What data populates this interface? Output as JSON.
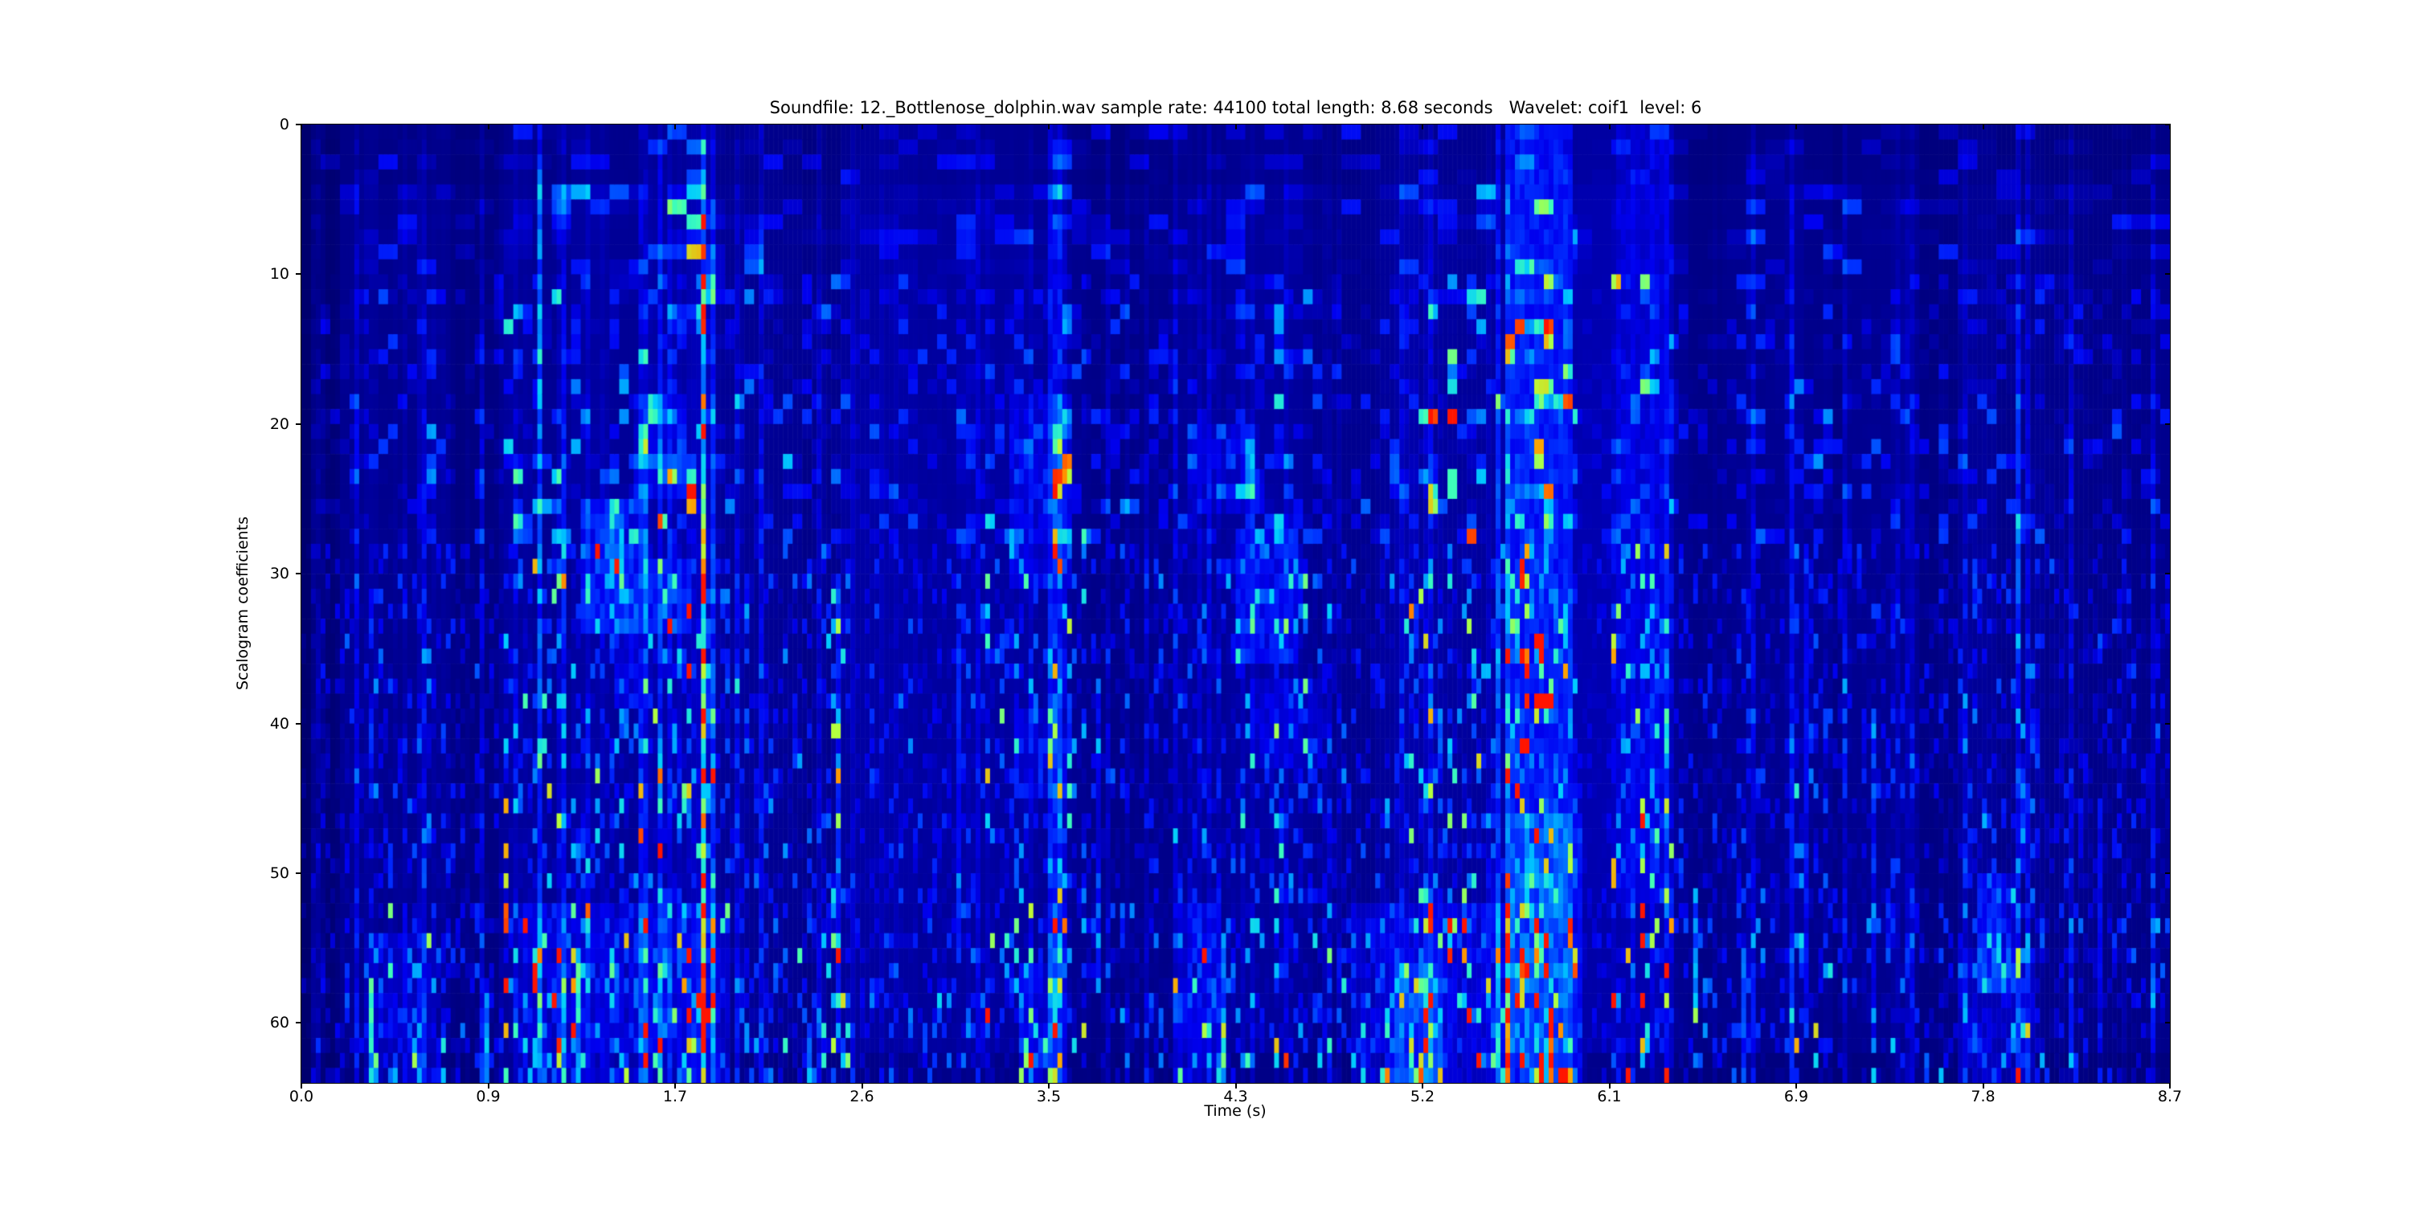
{
  "figure": {
    "background": "#ffffff",
    "text_color": "#000000"
  },
  "chart_data": {
    "type": "heatmap",
    "title": "Soundfile: 12._Bottlenose_dolphin.wav sample rate: 44100 total length: 8.68 seconds   Wavelet: coif1  level: 6",
    "xlabel": "Time (s)",
    "ylabel": "Scalogram coefficients",
    "sound": {
      "file": "12._Bottlenose_dolphin.wav",
      "sample_rate": "44100",
      "total_length_seconds": "8.68",
      "wavelet": "coif1",
      "level": "6"
    },
    "x_ticks": [
      "0.0",
      "0.9",
      "1.7",
      "2.6",
      "3.5",
      "4.3",
      "5.2",
      "6.1",
      "6.9",
      "7.8",
      "8.7"
    ],
    "y_ticks": [
      "0",
      "10",
      "20",
      "30",
      "40",
      "50",
      "60"
    ],
    "y_tick_values": [
      0,
      10,
      20,
      30,
      40,
      50,
      60
    ],
    "x_range": [
      0,
      8.68
    ],
    "y_range": [
      0,
      64
    ],
    "y_axis_inverted": true,
    "grid": false,
    "legend": "none",
    "grid_cols": 388,
    "grid_rows": 64,
    "seed": 1337,
    "base_color": "#000080",
    "colormap": [
      {
        "v": 0.0,
        "rgb": [
          0,
          0,
          110
        ]
      },
      {
        "v": 0.06,
        "rgb": [
          0,
          0,
          128
        ]
      },
      {
        "v": 0.14,
        "rgb": [
          0,
          0,
          168
        ]
      },
      {
        "v": 0.26,
        "rgb": [
          0,
          0,
          240
        ]
      },
      {
        "v": 0.38,
        "rgb": [
          0,
          48,
          255
        ]
      },
      {
        "v": 0.5,
        "rgb": [
          0,
          116,
          255
        ]
      },
      {
        "v": 0.62,
        "rgb": [
          0,
          204,
          255
        ]
      },
      {
        "v": 0.72,
        "rgb": [
          64,
          255,
          183
        ]
      },
      {
        "v": 0.82,
        "rgb": [
          182,
          255,
          60
        ]
      },
      {
        "v": 0.91,
        "rgb": [
          255,
          160,
          0
        ]
      },
      {
        "v": 1.0,
        "rgb": [
          255,
          20,
          0
        ]
      }
    ],
    "time_bands": [
      {
        "t0": 0.0,
        "t1": 0.1,
        "base": 0.035,
        "noise": 0.5
      },
      {
        "t0": 0.1,
        "t1": 0.28,
        "base": 0.055,
        "noise": 0.8
      },
      {
        "t0": 0.28,
        "t1": 0.7,
        "base": 0.065,
        "noise": 1.25
      },
      {
        "t0": 0.7,
        "t1": 0.95,
        "base": 0.05,
        "noise": 0.8
      },
      {
        "t0": 0.95,
        "t1": 1.8,
        "base": 0.08,
        "noise": 1.8
      },
      {
        "t0": 1.8,
        "t1": 1.93,
        "base": 0.09,
        "noise": 2.4
      },
      {
        "t0": 1.93,
        "t1": 2.45,
        "base": 0.065,
        "noise": 1.15
      },
      {
        "t0": 2.45,
        "t1": 2.55,
        "base": 0.07,
        "noise": 1.7
      },
      {
        "t0": 2.55,
        "t1": 3.15,
        "base": 0.078,
        "noise": 0.85
      },
      {
        "t0": 3.15,
        "t1": 3.65,
        "base": 0.075,
        "noise": 1.55
      },
      {
        "t0": 3.65,
        "t1": 4.05,
        "base": 0.065,
        "noise": 1.0
      },
      {
        "t0": 4.05,
        "t1": 4.7,
        "base": 0.075,
        "noise": 1.45
      },
      {
        "t0": 4.7,
        "t1": 5.1,
        "base": 0.065,
        "noise": 1.1
      },
      {
        "t0": 5.1,
        "t1": 5.6,
        "base": 0.08,
        "noise": 1.9
      },
      {
        "t0": 5.6,
        "t1": 5.92,
        "base": 0.11,
        "noise": 2.6
      },
      {
        "t0": 5.92,
        "t1": 6.08,
        "base": 0.13,
        "noise": 0.45
      },
      {
        "t0": 6.08,
        "t1": 6.38,
        "base": 0.09,
        "noise": 1.8
      },
      {
        "t0": 6.38,
        "t1": 6.9,
        "base": 0.06,
        "noise": 0.9
      },
      {
        "t0": 6.9,
        "t1": 7.12,
        "base": 0.07,
        "noise": 1.3
      },
      {
        "t0": 7.12,
        "t1": 7.7,
        "base": 0.055,
        "noise": 0.9
      },
      {
        "t0": 7.7,
        "t1": 8.1,
        "base": 0.065,
        "noise": 1.3
      },
      {
        "t0": 8.1,
        "t1": 8.68,
        "base": 0.055,
        "noise": 0.85
      }
    ],
    "row_profile": [
      {
        "r0": 0,
        "r1": 4,
        "mult": 0.5,
        "base_mult": 0.85
      },
      {
        "r0": 4,
        "r1": 18,
        "mult": 0.75,
        "base_mult": 1.0
      },
      {
        "r0": 18,
        "r1": 47,
        "mult": 1.0,
        "base_mult": 1.0
      },
      {
        "r0": 47,
        "r1": 52,
        "mult": 0.95,
        "base_mult": 1.0
      },
      {
        "r0": 52,
        "r1": 62,
        "mult": 1.35,
        "base_mult": 0.9
      },
      {
        "r0": 62,
        "r1": 64,
        "mult": 1.6,
        "base_mult": 0.5
      }
    ],
    "bright_regions": [
      {
        "t0": 0.0,
        "t1": 0.05,
        "r0": 0,
        "r1": 64,
        "amp": -0.1
      },
      {
        "t0": 0.12,
        "t1": 0.18,
        "r0": 0,
        "r1": 64,
        "amp": -0.045
      },
      {
        "t0": 2.55,
        "t1": 3.15,
        "r0": 0,
        "r1": 64,
        "amp": 0.015
      },
      {
        "t0": 1.3,
        "t1": 1.62,
        "r0": 25,
        "r1": 34,
        "amp": 0.26
      },
      {
        "t0": 1.4,
        "t1": 1.5,
        "r0": 26,
        "r1": 31,
        "amp": 0.3
      },
      {
        "t0": 1.45,
        "t1": 1.56,
        "r0": 31,
        "r1": 39,
        "amp": 0.18
      },
      {
        "t0": 1.62,
        "t1": 1.82,
        "r0": 29,
        "r1": 34,
        "amp": 0.22
      },
      {
        "t0": 1.55,
        "t1": 1.8,
        "r0": 18,
        "r1": 25,
        "amp": 0.14
      },
      {
        "t0": 3.28,
        "t1": 3.58,
        "r0": 18,
        "r1": 31,
        "amp": 0.16
      },
      {
        "t0": 3.3,
        "t1": 3.52,
        "r0": 39,
        "r1": 45,
        "amp": 0.14
      },
      {
        "t0": 4.35,
        "t1": 4.62,
        "r0": 27,
        "r1": 36,
        "amp": 0.24
      },
      {
        "t0": 4.12,
        "t1": 4.45,
        "r0": 20,
        "r1": 26,
        "amp": 0.13
      },
      {
        "t0": 4.4,
        "t1": 4.75,
        "r0": 37,
        "r1": 43,
        "amp": 0.13
      },
      {
        "t0": 5.62,
        "t1": 5.9,
        "r0": 0,
        "r1": 64,
        "amp": 0.2
      },
      {
        "t0": 6.1,
        "t1": 6.36,
        "r0": 0,
        "r1": 52,
        "amp": 0.1
      },
      {
        "t0": 7.78,
        "t1": 7.97,
        "r0": 50,
        "r1": 58,
        "amp": 0.26
      },
      {
        "t0": 5.08,
        "t1": 5.3,
        "r0": 56,
        "r1": 64,
        "amp": 0.22
      },
      {
        "t0": 0.28,
        "t1": 0.62,
        "r0": 54,
        "r1": 64,
        "amp": 0.14
      },
      {
        "t0": 1.0,
        "t1": 2.0,
        "r0": 52,
        "r1": 64,
        "amp": 0.14
      },
      {
        "t0": 3.33,
        "t1": 3.52,
        "r0": 56,
        "r1": 64,
        "amp": 0.18
      },
      {
        "t0": 4.08,
        "t1": 4.28,
        "r0": 52,
        "r1": 64,
        "amp": 0.16
      },
      {
        "t0": 4.88,
        "t1": 5.62,
        "r0": 52,
        "r1": 64,
        "amp": 0.16
      },
      {
        "t0": 5.62,
        "t1": 5.95,
        "r0": 46,
        "r1": 64,
        "amp": 0.18
      },
      {
        "t0": 7.7,
        "t1": 8.06,
        "r0": 55,
        "r1": 64,
        "amp": 0.14
      }
    ],
    "vertical_lines": [
      {
        "t": 0.33,
        "r0": 57,
        "r1": 64,
        "amp": 0.55
      },
      {
        "t": 0.87,
        "r0": 58,
        "r1": 64,
        "amp": 0.6
      },
      {
        "t": 1.1,
        "r0": 2,
        "r1": 20,
        "amp": 0.25
      },
      {
        "t": 1.28,
        "r0": 56,
        "r1": 64,
        "amp": 0.45
      },
      {
        "t": 1.86,
        "r0": 10,
        "r1": 62,
        "amp": 0.3
      },
      {
        "t": 2.49,
        "r0": 30,
        "r1": 62,
        "amp": 0.28
      },
      {
        "t": 3.05,
        "r0": 34,
        "r1": 56,
        "amp": 0.25
      },
      {
        "t": 3.7,
        "r0": 38,
        "r1": 58,
        "amp": 0.22
      },
      {
        "t": 4.28,
        "r0": 54,
        "r1": 64,
        "amp": 0.5
      },
      {
        "t": 5.81,
        "r0": 59,
        "r1": 64,
        "amp": 0.7
      },
      {
        "t": 6.48,
        "r0": 51,
        "r1": 60,
        "amp": 0.55
      },
      {
        "t": 6.7,
        "r0": 55,
        "r1": 64,
        "amp": 0.4
      },
      {
        "t": 7.0,
        "r0": 28,
        "r1": 60,
        "amp": 0.22
      },
      {
        "t": 7.3,
        "r0": 40,
        "r1": 62,
        "amp": 0.2
      },
      {
        "t": 8.35,
        "r0": 45,
        "r1": 62,
        "amp": 0.22
      }
    ]
  }
}
